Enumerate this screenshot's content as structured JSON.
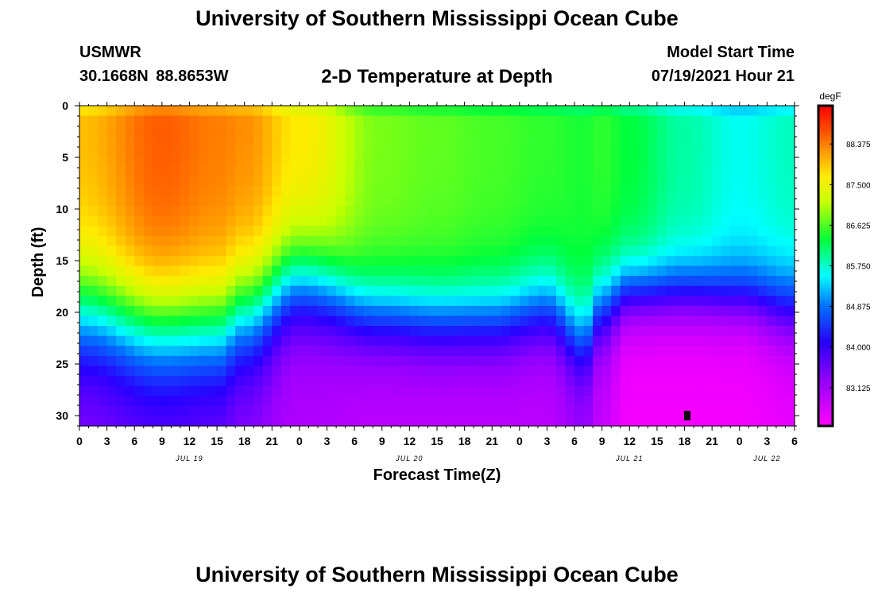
{
  "header": {
    "title": "University of Southern Mississippi Ocean Cube",
    "station": "USMWR",
    "coordinates": "30.1668N  88.8653W",
    "subtitle": "2-D Temperature at Depth",
    "start_label": "Model Start Time",
    "start_value": "07/19/2021 Hour 21"
  },
  "footer": {
    "title": "University of Southern Mississippi Ocean Cube"
  },
  "chart_data": {
    "type": "heatmap",
    "title": "2-D Temperature at Depth",
    "xlabel": "Forecast Time(Z)",
    "ylabel": "Depth (ft)",
    "x_range_hours": [
      0,
      78
    ],
    "x_tick_labels": [
      "0",
      "3",
      "6",
      "9",
      "12",
      "15",
      "18",
      "21",
      "0",
      "3",
      "6",
      "9",
      "12",
      "15",
      "18",
      "21",
      "0",
      "3",
      "6",
      "9",
      "12",
      "15",
      "18",
      "21",
      "0",
      "3",
      "6"
    ],
    "date_labels": [
      {
        "label": "JUL 19",
        "hour": 12
      },
      {
        "label": "JUL 20",
        "hour": 36
      },
      {
        "label": "JUL 21",
        "hour": 60
      },
      {
        "label": "JUL 22",
        "hour": 75
      }
    ],
    "y_range": [
      0,
      31
    ],
    "y_tick_labels": [
      "0",
      "5",
      "10",
      "15",
      "20",
      "25",
      "30"
    ],
    "y_ticks": [
      0,
      5,
      10,
      15,
      20,
      25,
      30
    ],
    "colorbar": {
      "unit": "degF",
      "range": [
        82.3,
        89.2
      ],
      "tick_values": [
        88.375,
        87.5,
        86.625,
        85.75,
        84.875,
        84.0,
        83.125
      ],
      "tick_labels": [
        "88.375",
        "87.500",
        "86.625",
        "85.750",
        "84.875",
        "84.000",
        "83.125"
      ]
    },
    "z_params": {
      "key_hours": [
        0,
        9,
        15,
        18,
        24,
        33,
        39,
        45,
        51,
        55,
        57,
        60,
        66,
        72,
        78
      ],
      "upper_temp": [
        88.0,
        88.6,
        88.4,
        88.3,
        87.7,
        86.8,
        86.7,
        86.6,
        86.5,
        86.4,
        86.5,
        86.3,
        85.9,
        85.6,
        85.8
      ],
      "thermocline_depth": [
        20.0,
        21.5,
        21.5,
        20.0,
        17.0,
        20.0,
        20.5,
        20.5,
        19.5,
        22.5,
        19.5,
        18.0,
        18.0,
        18.5,
        19.5
      ],
      "thermocline_width": [
        3.2,
        3.2,
        3.2,
        3.2,
        2.8,
        2.4,
        2.4,
        2.4,
        2.4,
        2.4,
        2.4,
        2.0,
        2.0,
        2.0,
        2.4
      ],
      "bottom_temp": [
        83.4,
        83.6,
        83.5,
        83.3,
        83.0,
        82.9,
        82.9,
        82.9,
        82.9,
        83.2,
        82.8,
        82.4,
        82.4,
        82.4,
        82.5
      ]
    },
    "marker": {
      "hour": 66.3,
      "depth": 30.0
    }
  }
}
